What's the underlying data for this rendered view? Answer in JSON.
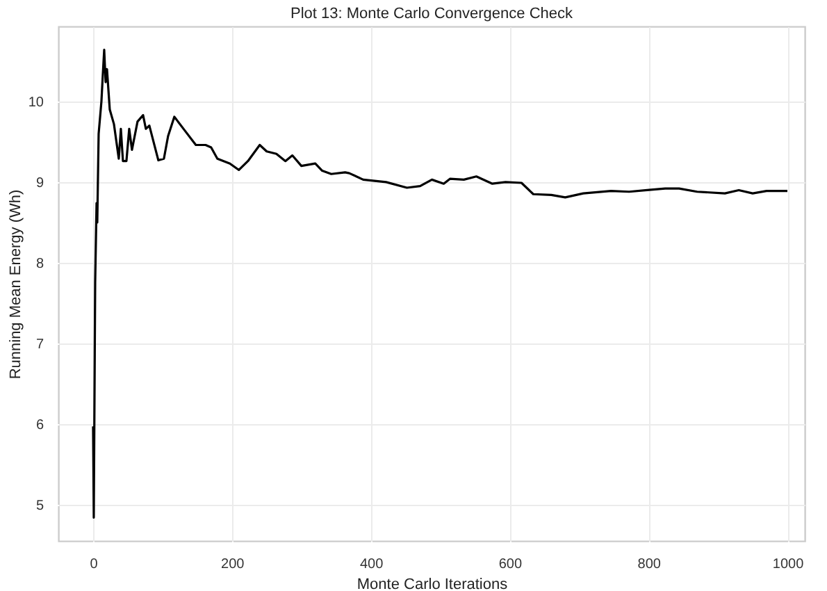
{
  "chart_data": {
    "type": "line",
    "title": "Plot 13: Monte Carlo Convergence Check",
    "xlabel": "Monte Carlo Iterations",
    "ylabel": "Running Mean Energy (Wh)",
    "x": [
      0,
      1,
      3,
      5,
      6,
      8,
      12,
      14,
      16,
      18,
      20,
      24,
      30,
      37,
      40,
      43,
      48,
      52,
      56,
      64,
      72,
      76,
      81,
      94,
      102,
      108,
      117,
      132,
      148,
      162,
      170,
      179,
      197,
      210,
      223,
      240,
      250,
      264,
      277,
      287,
      300,
      320,
      330,
      343,
      363,
      369,
      389,
      422,
      452,
      471,
      488,
      505,
      514,
      534,
      552,
      575,
      594,
      617,
      634,
      660,
      680,
      706,
      746,
      772,
      798,
      824,
      844,
      870,
      910,
      930,
      950,
      970,
      1000
    ],
    "series": [
      {
        "color": "#000000",
        "values": [
          5.97,
          4.84,
          7.76,
          8.74,
          8.5,
          9.6,
          10.0,
          10.33,
          10.64,
          10.24,
          10.4,
          9.9,
          9.72,
          9.29,
          9.66,
          9.26,
          9.26,
          9.66,
          9.4,
          9.75,
          9.83,
          9.66,
          9.7,
          9.27,
          9.29,
          9.57,
          9.81,
          9.64,
          9.46,
          9.46,
          9.43,
          9.29,
          9.23,
          9.15,
          9.26,
          9.46,
          9.38,
          9.35,
          9.26,
          9.33,
          9.2,
          9.23,
          9.14,
          9.1,
          9.12,
          9.11,
          9.03,
          9.0,
          8.93,
          8.95,
          9.03,
          8.98,
          9.04,
          9.03,
          9.07,
          8.98,
          9.0,
          8.99,
          8.85,
          8.84,
          8.81,
          8.86,
          8.89,
          8.88,
          8.9,
          8.92,
          8.92,
          8.88,
          8.86,
          8.9,
          8.86,
          8.89,
          8.89
        ]
      }
    ],
    "xlim": [
      -50,
      1025
    ],
    "xticks": [
      0,
      200,
      400,
      600,
      800,
      1000
    ],
    "ylim": [
      4.55,
      10.93
    ],
    "yticks": [
      5,
      6,
      7,
      8,
      9,
      10
    ],
    "grid": true,
    "line_style": "solid"
  }
}
